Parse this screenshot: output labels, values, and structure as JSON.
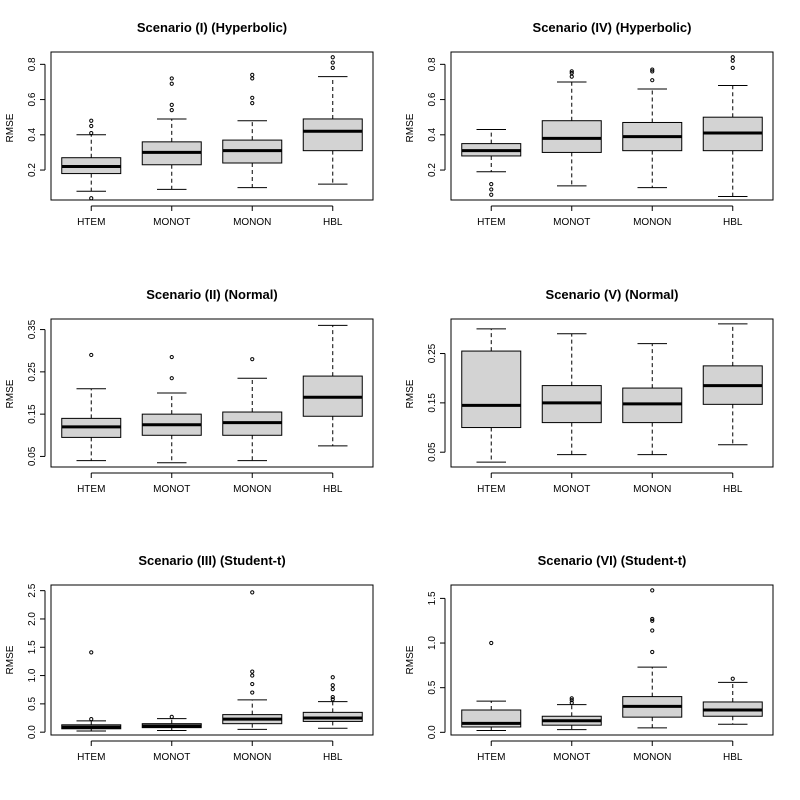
{
  "chart_data": [
    {
      "type": "boxplot",
      "title": "Scenario (I) (Hyperbolic)",
      "ylabel": "RMSE",
      "categories": [
        "HTEM",
        "MONOT",
        "MONON",
        "HBL"
      ],
      "ylim": [
        0.03,
        0.87
      ],
      "yticks": [
        0.2,
        0.4,
        0.6,
        0.8
      ],
      "ytick_labels": [
        "0.2",
        "0.4",
        "0.6",
        "0.8"
      ],
      "boxes": [
        {
          "whisker_low": 0.08,
          "q1": 0.18,
          "median": 0.22,
          "q3": 0.27,
          "whisker_high": 0.4,
          "outliers": [
            0.04,
            0.41,
            0.45,
            0.48
          ]
        },
        {
          "whisker_low": 0.09,
          "q1": 0.23,
          "median": 0.3,
          "q3": 0.36,
          "whisker_high": 0.49,
          "outliers": [
            0.54,
            0.57,
            0.69,
            0.72
          ]
        },
        {
          "whisker_low": 0.1,
          "q1": 0.24,
          "median": 0.31,
          "q3": 0.37,
          "whisker_high": 0.48,
          "outliers": [
            0.58,
            0.61,
            0.72,
            0.74
          ]
        },
        {
          "whisker_low": 0.12,
          "q1": 0.31,
          "median": 0.42,
          "q3": 0.49,
          "whisker_high": 0.73,
          "outliers": [
            0.78,
            0.81,
            0.84
          ]
        }
      ]
    },
    {
      "type": "boxplot",
      "title": "Scenario (IV) (Hyperbolic)",
      "ylabel": "RMSE",
      "categories": [
        "HTEM",
        "MONOT",
        "MONON",
        "HBL"
      ],
      "ylim": [
        0.03,
        0.87
      ],
      "yticks": [
        0.2,
        0.4,
        0.6,
        0.8
      ],
      "ytick_labels": [
        "0.2",
        "0.4",
        "0.6",
        "0.8"
      ],
      "boxes": [
        {
          "whisker_low": 0.19,
          "q1": 0.28,
          "median": 0.31,
          "q3": 0.35,
          "whisker_high": 0.43,
          "outliers": [
            0.06,
            0.09,
            0.12
          ]
        },
        {
          "whisker_low": 0.11,
          "q1": 0.3,
          "median": 0.38,
          "q3": 0.48,
          "whisker_high": 0.7,
          "outliers": [
            0.73,
            0.75,
            0.76
          ]
        },
        {
          "whisker_low": 0.1,
          "q1": 0.31,
          "median": 0.39,
          "q3": 0.47,
          "whisker_high": 0.66,
          "outliers": [
            0.71,
            0.76,
            0.77
          ]
        },
        {
          "whisker_low": 0.05,
          "q1": 0.31,
          "median": 0.41,
          "q3": 0.5,
          "whisker_high": 0.68,
          "outliers": [
            0.78,
            0.82,
            0.84
          ]
        }
      ]
    },
    {
      "type": "boxplot",
      "title": "Scenario (II) (Normal)",
      "ylabel": "RMSE",
      "categories": [
        "HTEM",
        "MONOT",
        "MONON",
        "HBL"
      ],
      "ylim": [
        0.025,
        0.375
      ],
      "yticks": [
        0.05,
        0.15,
        0.25,
        0.35
      ],
      "ytick_labels": [
        "0.05",
        "0.15",
        "0.25",
        "0.35"
      ],
      "boxes": [
        {
          "whisker_low": 0.04,
          "q1": 0.095,
          "median": 0.12,
          "q3": 0.14,
          "whisker_high": 0.21,
          "outliers": [
            0.29
          ]
        },
        {
          "whisker_low": 0.035,
          "q1": 0.1,
          "median": 0.125,
          "q3": 0.15,
          "whisker_high": 0.2,
          "outliers": [
            0.235,
            0.285
          ]
        },
        {
          "whisker_low": 0.04,
          "q1": 0.1,
          "median": 0.13,
          "q3": 0.155,
          "whisker_high": 0.235,
          "outliers": [
            0.28
          ]
        },
        {
          "whisker_low": 0.075,
          "q1": 0.145,
          "median": 0.19,
          "q3": 0.24,
          "whisker_high": 0.36,
          "outliers": []
        }
      ]
    },
    {
      "type": "boxplot",
      "title": "Scenario (V) (Normal)",
      "ylabel": "RMSE",
      "categories": [
        "HTEM",
        "MONOT",
        "MONON",
        "HBL"
      ],
      "ylim": [
        0.02,
        0.32
      ],
      "yticks": [
        0.05,
        0.15,
        0.25
      ],
      "ytick_labels": [
        "0.05",
        "0.15",
        "0.25"
      ],
      "boxes": [
        {
          "whisker_low": 0.03,
          "q1": 0.1,
          "median": 0.145,
          "q3": 0.255,
          "whisker_high": 0.3,
          "outliers": []
        },
        {
          "whisker_low": 0.045,
          "q1": 0.11,
          "median": 0.15,
          "q3": 0.185,
          "whisker_high": 0.29,
          "outliers": []
        },
        {
          "whisker_low": 0.045,
          "q1": 0.11,
          "median": 0.148,
          "q3": 0.18,
          "whisker_high": 0.27,
          "outliers": []
        },
        {
          "whisker_low": 0.065,
          "q1": 0.147,
          "median": 0.185,
          "q3": 0.225,
          "whisker_high": 0.31,
          "outliers": []
        }
      ]
    },
    {
      "type": "boxplot",
      "title": "Scenario (III) (Student-t)",
      "ylabel": "RMSE",
      "categories": [
        "HTEM",
        "MONOT",
        "MONON",
        "HBL"
      ],
      "ylim": [
        -0.05,
        2.6
      ],
      "yticks": [
        0,
        0.5,
        1.0,
        1.5,
        2.0,
        2.5
      ],
      "ytick_labels": [
        "0.0",
        "0.5",
        "1.0",
        "1.5",
        "2.0",
        "2.5"
      ],
      "boxes": [
        {
          "whisker_low": 0.02,
          "q1": 0.06,
          "median": 0.09,
          "q3": 0.13,
          "whisker_high": 0.2,
          "outliers": [
            0.23,
            1.41
          ]
        },
        {
          "whisker_low": 0.03,
          "q1": 0.08,
          "median": 0.11,
          "q3": 0.15,
          "whisker_high": 0.24,
          "outliers": [
            0.27
          ]
        },
        {
          "whisker_low": 0.05,
          "q1": 0.15,
          "median": 0.23,
          "q3": 0.31,
          "whisker_high": 0.57,
          "outliers": [
            0.7,
            0.85,
            1.0,
            1.07,
            2.47
          ]
        },
        {
          "whisker_low": 0.07,
          "q1": 0.19,
          "median": 0.25,
          "q3": 0.35,
          "whisker_high": 0.54,
          "outliers": [
            0.58,
            0.62,
            0.76,
            0.83,
            0.97
          ]
        }
      ]
    },
    {
      "type": "boxplot",
      "title": "Scenario (VI) (Student-t)",
      "ylabel": "RMSE",
      "categories": [
        "HTEM",
        "MONOT",
        "MONON",
        "HBL"
      ],
      "ylim": [
        -0.03,
        1.65
      ],
      "yticks": [
        0,
        0.5,
        1.0,
        1.5
      ],
      "ytick_labels": [
        "0.0",
        "0.5",
        "1.0",
        "1.5"
      ],
      "boxes": [
        {
          "whisker_low": 0.02,
          "q1": 0.06,
          "median": 0.1,
          "q3": 0.25,
          "whisker_high": 0.35,
          "outliers": [
            1.0
          ]
        },
        {
          "whisker_low": 0.03,
          "q1": 0.08,
          "median": 0.13,
          "q3": 0.18,
          "whisker_high": 0.31,
          "outliers": [
            0.33,
            0.36,
            0.38
          ]
        },
        {
          "whisker_low": 0.05,
          "q1": 0.17,
          "median": 0.29,
          "q3": 0.4,
          "whisker_high": 0.73,
          "outliers": [
            0.9,
            1.14,
            1.25,
            1.27,
            1.59
          ]
        },
        {
          "whisker_low": 0.09,
          "q1": 0.18,
          "median": 0.25,
          "q3": 0.34,
          "whisker_high": 0.56,
          "outliers": [
            0.6
          ]
        }
      ]
    }
  ]
}
